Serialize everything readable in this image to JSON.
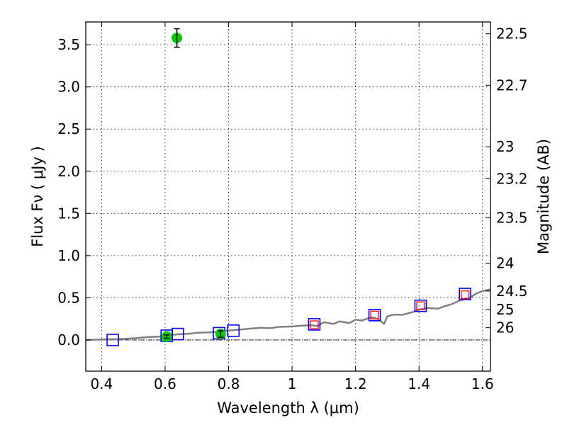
{
  "chart_data": {
    "type": "scatter",
    "xlabel": "Wavelength  λ (μm)",
    "ylabel": "Flux  Fν  ( μJy )",
    "y2label": "Magnitude (AB)",
    "xlim": [
      0.35,
      1.625
    ],
    "ylim": [
      -0.37,
      3.77
    ],
    "grid": true,
    "x_ticks": [
      0.4,
      0.6,
      0.8,
      1.0,
      1.2,
      1.4,
      1.6
    ],
    "x_tick_labels": [
      "0.4",
      "0.6",
      "0.8",
      "1",
      "1.2",
      "1.4",
      "1.6"
    ],
    "y_ticks": [
      0.0,
      0.5,
      1.0,
      1.5,
      2.0,
      2.5,
      3.0,
      3.5
    ],
    "y_tick_labels": [
      "0.0",
      "0.5",
      "1.0",
      "1.5",
      "2.0",
      "2.5",
      "3.0",
      "3.5"
    ],
    "y2_ticks": [
      {
        "label": "22.5",
        "flux": 3.63
      },
      {
        "label": "22.7",
        "flux": 3.02
      },
      {
        "label": "23",
        "flux": 2.29
      },
      {
        "label": "23.2",
        "flux": 1.91
      },
      {
        "label": "23.5",
        "flux": 1.45
      },
      {
        "label": "24",
        "flux": 0.91
      },
      {
        "label": "24.5",
        "flux": 0.58
      },
      {
        "label": "25",
        "flux": 0.36
      },
      {
        "label": "26",
        "flux": 0.145
      }
    ],
    "colors": {
      "model": "#808080",
      "blue_box": "#0000ff",
      "red_box": "#ff0000",
      "green": "#00cc00",
      "errorbar": "#000000",
      "zero_line": "#000000",
      "grid": "#000000"
    },
    "series": [
      {
        "kind": "model_spectrum",
        "x": [
          0.35,
          0.4,
          0.45,
          0.5,
          0.55,
          0.58,
          0.6,
          0.62,
          0.65,
          0.68,
          0.7,
          0.74,
          0.77,
          0.8,
          0.84,
          0.87,
          0.9,
          0.93,
          0.96,
          1.0,
          1.03,
          1.06,
          1.08,
          1.1,
          1.13,
          1.15,
          1.18,
          1.2,
          1.22,
          1.25,
          1.27,
          1.29,
          1.3,
          1.32,
          1.35,
          1.38,
          1.4,
          1.43,
          1.46,
          1.48,
          1.5,
          1.53,
          1.56,
          1.58,
          1.6,
          1.625
        ],
        "y": [
          0.0,
          0.005,
          0.01,
          0.02,
          0.035,
          0.04,
          0.05,
          0.06,
          0.07,
          0.075,
          0.085,
          0.09,
          0.1,
          0.11,
          0.125,
          0.135,
          0.145,
          0.14,
          0.155,
          0.16,
          0.17,
          0.175,
          0.165,
          0.21,
          0.19,
          0.22,
          0.2,
          0.24,
          0.23,
          0.27,
          0.25,
          0.19,
          0.28,
          0.3,
          0.3,
          0.33,
          0.36,
          0.38,
          0.37,
          0.4,
          0.42,
          0.47,
          0.5,
          0.55,
          0.58,
          0.6
        ]
      },
      {
        "kind": "blue_boxes",
        "x": [
          0.435,
          0.605,
          0.64,
          0.77,
          0.815,
          1.07,
          1.26,
          1.405,
          1.545
        ],
        "y": [
          0.0,
          0.05,
          0.07,
          0.08,
          0.11,
          0.185,
          0.295,
          0.405,
          0.545
        ]
      },
      {
        "kind": "red_boxes",
        "x": [
          1.07,
          1.26,
          1.405,
          1.545
        ],
        "y": [
          0.18,
          0.295,
          0.405,
          0.535
        ]
      },
      {
        "kind": "green_points",
        "x": [
          0.605,
          0.637,
          0.775
        ],
        "y": [
          0.04,
          3.58,
          0.07
        ],
        "yerr": [
          0.02,
          0.11,
          0.04
        ]
      }
    ]
  }
}
